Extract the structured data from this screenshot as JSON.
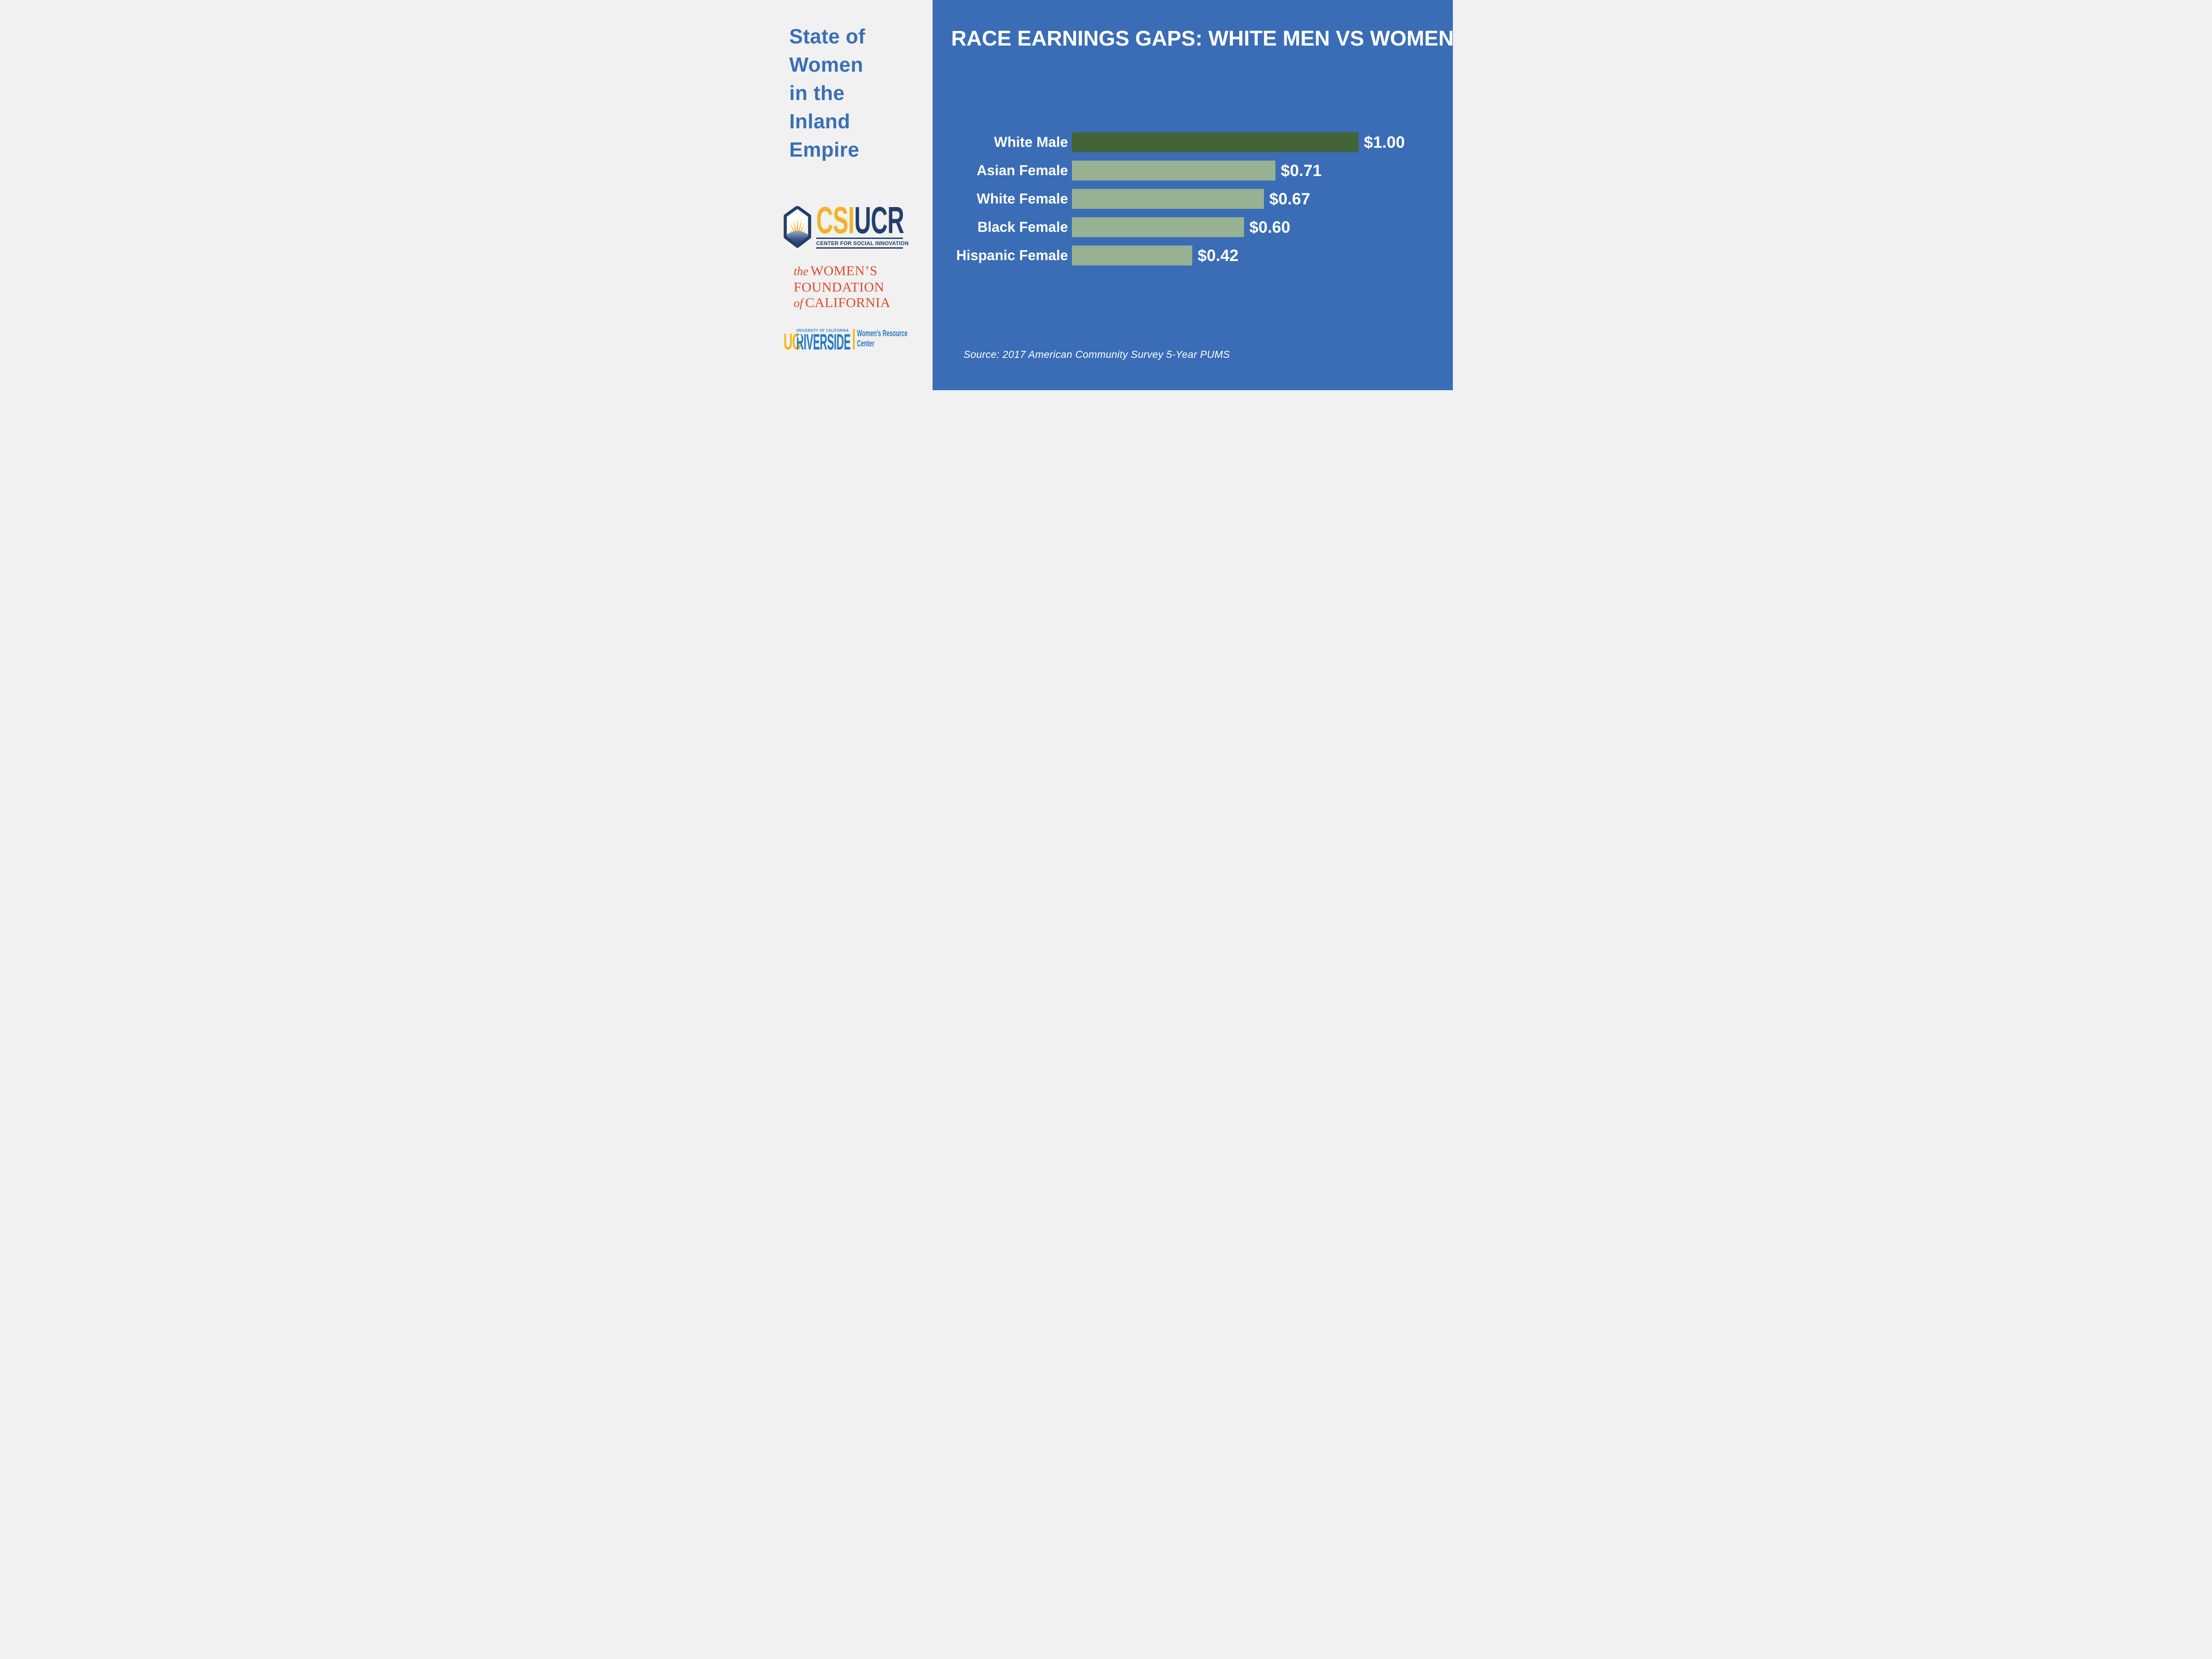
{
  "sidebar": {
    "title_lines": [
      "State of",
      "Women",
      "in the",
      "Inland",
      "Empire"
    ],
    "csi_logo": {
      "csi": "CSI",
      "ucr": "UCR",
      "tagline": "CENTER FOR SOCIAL INNOVATION",
      "badge_icon": "sun-over-mountain-badge"
    },
    "wfc_logo": {
      "the": "the",
      "womens": "WOMEN’S",
      "foundation": "FOUNDATION",
      "of": "of",
      "california": "CALIFORNIA"
    },
    "ucr_logo": {
      "uc": "UC",
      "university": "UNIVERSITY OF CALIFORNIA",
      "riverside": "RIVERSIDE",
      "unit_line1": "Women’s Resource",
      "unit_line2": "Center"
    }
  },
  "chart": {
    "title": "RACE EARNINGS GAPS: WHITE MEN VS WOMEN",
    "source": "Source: 2017 American Community Survey 5-Year PUMS"
  },
  "chart_data": {
    "type": "bar",
    "orientation": "horizontal",
    "title": "RACE EARNINGS GAPS: WHITE MEN VS WOMEN",
    "categories": [
      "White Male",
      "Asian Female",
      "White Female",
      "Black Female",
      "Hispanic Female"
    ],
    "values": [
      1.0,
      0.71,
      0.67,
      0.6,
      0.42
    ],
    "value_labels": [
      "$1.00",
      "$0.71",
      "$0.67",
      "$0.60",
      "$0.42"
    ],
    "xlabel": "",
    "ylabel": "",
    "xlim": [
      0,
      1
    ],
    "grid": false,
    "legend": false,
    "bar_colors": [
      "#436338",
      "#97B192",
      "#97B192",
      "#97B192",
      "#97B192"
    ],
    "annotation": "Source: 2017 American Community Survey 5-Year PUMS"
  },
  "colors": {
    "background_gray": "#F0F1F0",
    "panel_blue": "#3A6DB6",
    "male_bar_green": "#436338",
    "female_bar_sage": "#97B192",
    "text_white": "#FFFFFF",
    "sidebar_title_blue": "#3A6FB5",
    "csi_gold": "#F3B229",
    "csi_navy": "#243E6C",
    "wfc_orange": "#E4492D",
    "ucr_blue": "#2679C6",
    "ucr_gold": "#FDB515"
  }
}
